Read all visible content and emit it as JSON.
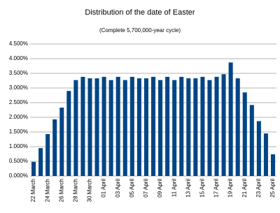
{
  "chart_data": {
    "type": "bar",
    "title": "Distribution of the date of Easter",
    "subtitle": "(Complete 5,700,000-year cycle)",
    "categories": [
      "22 March",
      null,
      "24 March",
      null,
      "26 March",
      null,
      "28 March",
      null,
      "30 March",
      null,
      "01 April",
      null,
      "03 April",
      null,
      "05 April",
      null,
      "07 April",
      null,
      "09 April",
      null,
      "11 April",
      null,
      "13 April",
      null,
      "15 April",
      null,
      "17 April",
      null,
      "19 April",
      null,
      "21 April",
      null,
      "23 April",
      null,
      "25 April"
    ],
    "values": [
      0.48,
      0.95,
      1.43,
      1.93,
      2.33,
      2.9,
      3.27,
      3.38,
      3.33,
      3.33,
      3.38,
      3.27,
      3.38,
      3.27,
      3.38,
      3.33,
      3.33,
      3.38,
      3.27,
      3.38,
      3.27,
      3.38,
      3.33,
      3.33,
      3.38,
      3.27,
      3.38,
      3.47,
      3.87,
      3.33,
      2.85,
      2.42,
      1.87,
      1.45,
      0.74
    ],
    "color": "#004586",
    "ylim": [
      0,
      4.5
    ],
    "yticks": [
      {
        "value": 0,
        "label": "0.000%"
      },
      {
        "value": 0.5,
        "label": "0.500%"
      },
      {
        "value": 1,
        "label": "1.000%"
      },
      {
        "value": 1.5,
        "label": "1.500%"
      },
      {
        "value": 2,
        "label": "2.000%"
      },
      {
        "value": 2.5,
        "label": "2.500%"
      },
      {
        "value": 3,
        "label": "3.000%"
      },
      {
        "value": 3.5,
        "label": "3.500%"
      },
      {
        "value": 4,
        "label": "4.000%"
      },
      {
        "value": 4.5,
        "label": "4.500%"
      }
    ],
    "grid": true
  }
}
